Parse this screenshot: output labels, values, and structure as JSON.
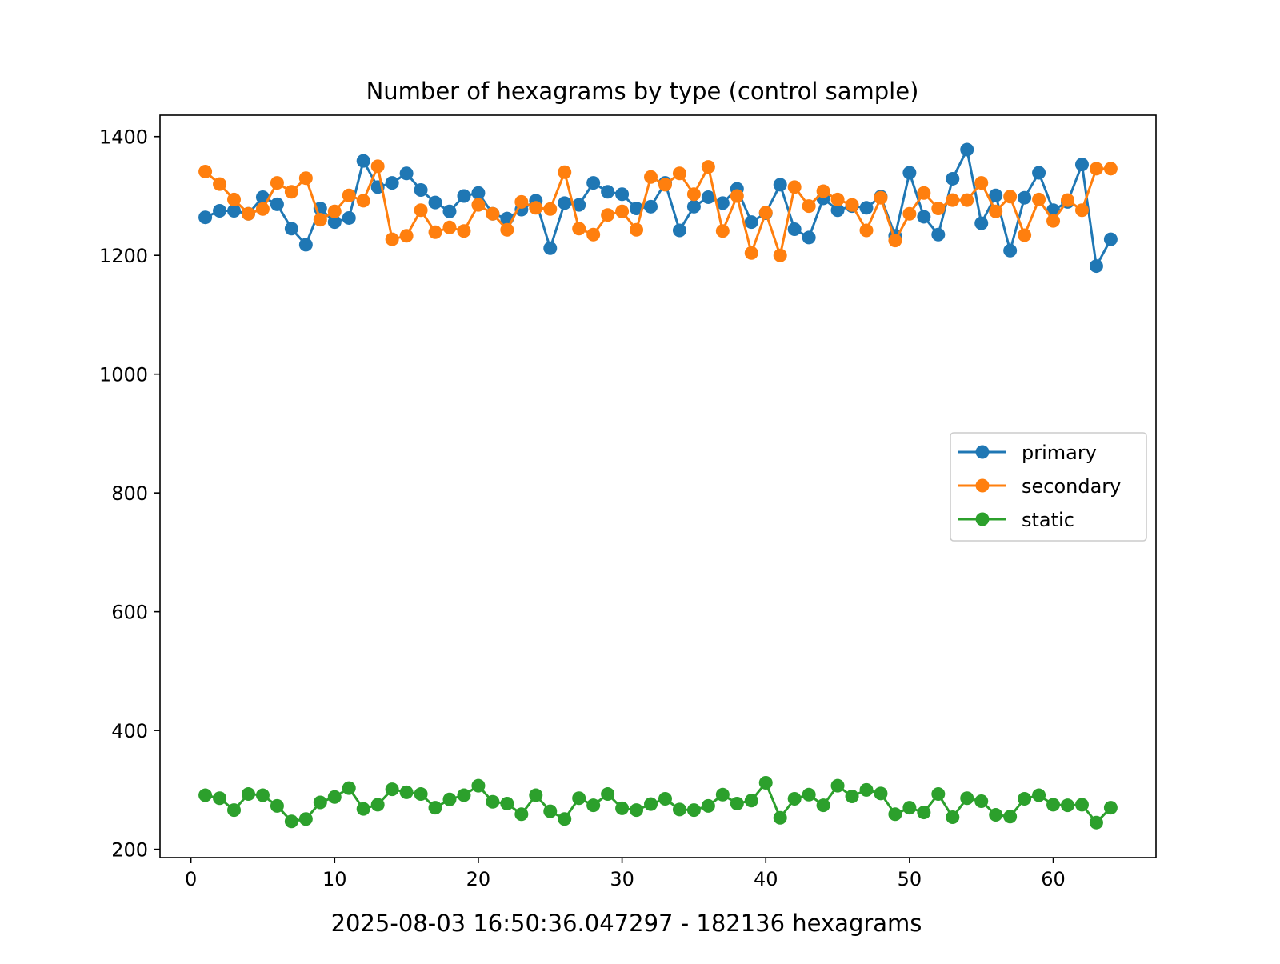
{
  "chart_data": {
    "type": "line",
    "title": "Number of hexagrams by type (control sample)",
    "footer": "2025-08-03 16:50:36.047297 - 182136 hexagrams",
    "xlabel": "",
    "ylabel": "",
    "xlim": [
      -2.15,
      67.15
    ],
    "ylim": [
      186,
      1436
    ],
    "xticks": [
      0,
      10,
      20,
      30,
      40,
      50,
      60
    ],
    "yticks": [
      200,
      400,
      600,
      800,
      1000,
      1200,
      1400
    ],
    "grid": false,
    "legend_position": "center-right",
    "x": [
      1,
      2,
      3,
      4,
      5,
      6,
      7,
      8,
      9,
      10,
      11,
      12,
      13,
      14,
      15,
      16,
      17,
      18,
      19,
      20,
      21,
      22,
      23,
      24,
      25,
      26,
      27,
      28,
      29,
      30,
      31,
      32,
      33,
      34,
      35,
      36,
      37,
      38,
      39,
      40,
      41,
      42,
      43,
      44,
      45,
      46,
      47,
      48,
      49,
      50,
      51,
      52,
      53,
      54,
      55,
      56,
      57,
      58,
      59,
      60,
      61,
      62,
      63,
      64
    ],
    "series": [
      {
        "name": "primary",
        "color": "#1f77b4",
        "values": [
          1264,
          1275,
          1275,
          1270,
          1298,
          1286,
          1245,
          1218,
          1279,
          1256,
          1263,
          1359,
          1315,
          1322,
          1338,
          1310,
          1289,
          1274,
          1300,
          1305,
          1270,
          1262,
          1277,
          1292,
          1212,
          1288,
          1285,
          1322,
          1307,
          1303,
          1279,
          1282,
          1322,
          1242,
          1282,
          1298,
          1288,
          1312,
          1256,
          1271,
          1319,
          1244,
          1230,
          1296,
          1276,
          1283,
          1280,
          1299,
          1233,
          1339,
          1265,
          1235,
          1329,
          1378,
          1254,
          1301,
          1208,
          1297,
          1339,
          1276,
          1290,
          1353,
          1182,
          1227
        ]
      },
      {
        "name": "secondary",
        "color": "#ff7f0e",
        "values": [
          1341,
          1320,
          1294,
          1270,
          1278,
          1322,
          1307,
          1330,
          1260,
          1274,
          1301,
          1292,
          1350,
          1227,
          1233,
          1276,
          1239,
          1247,
          1241,
          1285,
          1270,
          1243,
          1290,
          1280,
          1278,
          1340,
          1245,
          1235,
          1268,
          1274,
          1243,
          1332,
          1319,
          1338,
          1303,
          1349,
          1241,
          1300,
          1204,
          1272,
          1200,
          1315,
          1283,
          1308,
          1294,
          1285,
          1242,
          1297,
          1225,
          1270,
          1305,
          1279,
          1293,
          1293,
          1322,
          1274,
          1299,
          1234,
          1294,
          1258,
          1293,
          1276,
          1346,
          1346
        ]
      },
      {
        "name": "static",
        "color": "#2ca02c",
        "values": [
          291,
          286,
          266,
          293,
          291,
          273,
          247,
          251,
          279,
          288,
          303,
          268,
          275,
          301,
          296,
          293,
          270,
          284,
          291,
          307,
          280,
          277,
          259,
          291,
          264,
          251,
          286,
          274,
          293,
          269,
          266,
          276,
          285,
          267,
          266,
          273,
          292,
          277,
          282,
          312,
          253,
          285,
          292,
          274,
          307,
          289,
          300,
          294,
          259,
          270,
          262,
          293,
          254,
          286,
          281,
          258,
          255,
          285,
          291,
          275,
          274,
          275,
          245,
          270
        ]
      }
    ]
  }
}
